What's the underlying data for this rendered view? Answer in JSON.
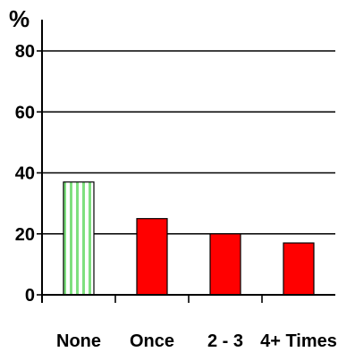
{
  "chart_data": {
    "type": "bar",
    "y_unit_label": "%",
    "categories": [
      "None",
      "Once",
      "2 - 3",
      "4+ Times"
    ],
    "values": [
      37,
      25,
      20,
      17
    ],
    "ylim": [
      0,
      85
    ],
    "yticks": [
      0,
      20,
      40,
      60,
      80
    ],
    "grid": true,
    "legend": "none",
    "colors": {
      "first_bar_fill": "#ffffff",
      "first_bar_stripes": "#7fe07f",
      "bar_fill": "#ff0000",
      "bar_edge": "#000000",
      "gridline": "#000000",
      "axis": "#000000"
    },
    "bar_patterns": [
      "vertical-stripes-green",
      "solid-red",
      "solid-red",
      "solid-red"
    ]
  }
}
